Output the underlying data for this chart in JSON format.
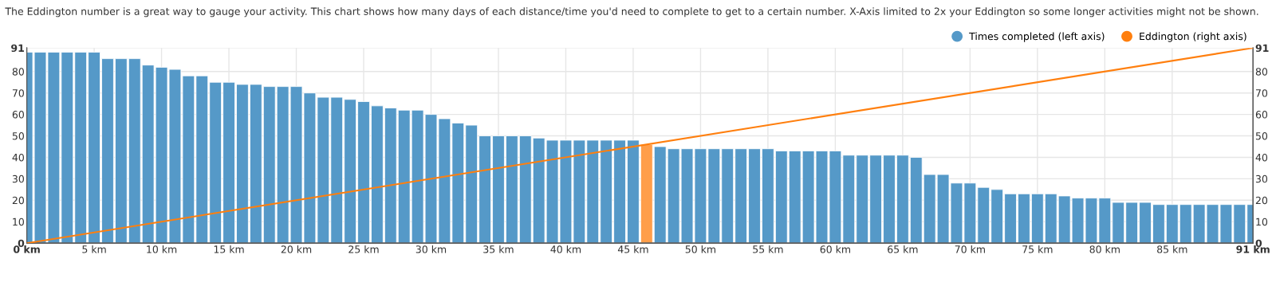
{
  "chart_data": {
    "type": "bar",
    "title": "The Eddington number is a great way to gauge your activity. This chart shows how many days of each distance/time you'd need to complete to get to a certain number. X-Axis limited to 2x your Eddington so some longer activities might not be shown.",
    "x": [
      0,
      1,
      2,
      3,
      4,
      5,
      6,
      7,
      8,
      9,
      10,
      11,
      12,
      13,
      14,
      15,
      16,
      17,
      18,
      19,
      20,
      21,
      22,
      23,
      24,
      25,
      26,
      27,
      28,
      29,
      30,
      31,
      32,
      33,
      34,
      35,
      36,
      37,
      38,
      39,
      40,
      41,
      42,
      43,
      44,
      45,
      46,
      47,
      48,
      49,
      50,
      51,
      52,
      53,
      54,
      55,
      56,
      57,
      58,
      59,
      60,
      61,
      62,
      63,
      64,
      65,
      66,
      67,
      68,
      69,
      70,
      71,
      72,
      73,
      74,
      75,
      76,
      77,
      78,
      79,
      80,
      81,
      82,
      83,
      84,
      85,
      86,
      87,
      88,
      89,
      90,
      91
    ],
    "series": [
      {
        "name": "Times completed (left axis)",
        "color": "#5599c8",
        "values": [
          89,
          89,
          89,
          89,
          89,
          89,
          86,
          86,
          86,
          83,
          82,
          81,
          78,
          78,
          75,
          75,
          74,
          74,
          73,
          73,
          73,
          70,
          68,
          68,
          67,
          66,
          64,
          63,
          62,
          62,
          60,
          58,
          56,
          55,
          50,
          50,
          50,
          50,
          49,
          48,
          48,
          48,
          48,
          48,
          48,
          48,
          46,
          45,
          44,
          44,
          44,
          44,
          44,
          44,
          44,
          44,
          43,
          43,
          43,
          43,
          43,
          41,
          41,
          41,
          41,
          41,
          40,
          32,
          32,
          28,
          28,
          26,
          25,
          23,
          23,
          23,
          23,
          22,
          21,
          21,
          21,
          19,
          19,
          19,
          18,
          18,
          18,
          18,
          18,
          18,
          18,
          18
        ],
        "colors": [
          "#5599c8",
          "#5599c8",
          "#5599c8",
          "#5599c8",
          "#5599c8",
          "#5599c8",
          "#5599c8",
          "#5599c8",
          "#5599c8",
          "#5599c8",
          "#5599c8",
          "#5599c8",
          "#5599c8",
          "#5599c8",
          "#5599c8",
          "#5599c8",
          "#5599c8",
          "#5599c8",
          "#5599c8",
          "#5599c8",
          "#5599c8",
          "#5599c8",
          "#5599c8",
          "#5599c8",
          "#5599c8",
          "#5599c8",
          "#5599c8",
          "#5599c8",
          "#5599c8",
          "#5599c8",
          "#5599c8",
          "#5599c8",
          "#5599c8",
          "#5599c8",
          "#5599c8",
          "#5599c8",
          "#5599c8",
          "#5599c8",
          "#5599c8",
          "#5599c8",
          "#5599c8",
          "#5599c8",
          "#5599c8",
          "#5599c8",
          "#5599c8",
          "#5599c8",
          "#ff9e4a",
          "#5599c8",
          "#5599c8",
          "#5599c8",
          "#5599c8",
          "#5599c8",
          "#5599c8",
          "#5599c8",
          "#5599c8",
          "#5599c8",
          "#5599c8",
          "#5599c8",
          "#5599c8",
          "#5599c8",
          "#5599c8",
          "#5599c8",
          "#5599c8",
          "#5599c8",
          "#5599c8",
          "#5599c8",
          "#5599c8",
          "#5599c8",
          "#5599c8",
          "#5599c8",
          "#5599c8",
          "#5599c8",
          "#5599c8",
          "#5599c8",
          "#5599c8",
          "#5599c8",
          "#5599c8",
          "#5599c8",
          "#5599c8",
          "#5599c8",
          "#5599c8",
          "#5599c8",
          "#5599c8",
          "#5599c8",
          "#5599c8",
          "#5599c8",
          "#5599c8",
          "#5599c8",
          "#5599c8",
          "#5599c8",
          "#5599c8",
          "#5599c8"
        ]
      },
      {
        "name": "Eddington (right axis)",
        "type": "line",
        "axis": "y2",
        "color": "#ff7f0e",
        "x": [
          0,
          91
        ],
        "values": [
          0,
          91
        ]
      }
    ],
    "xlim": [
      0,
      91
    ],
    "xticks": [
      {
        "value": 0,
        "label": "0 km"
      },
      {
        "value": 5,
        "label": "5 km"
      },
      {
        "value": 10,
        "label": "10 km"
      },
      {
        "value": 15,
        "label": "15 km"
      },
      {
        "value": 20,
        "label": "20 km"
      },
      {
        "value": 25,
        "label": "25 km"
      },
      {
        "value": 30,
        "label": "30 km"
      },
      {
        "value": 35,
        "label": "35 km"
      },
      {
        "value": 40,
        "label": "40 km"
      },
      {
        "value": 45,
        "label": "45 km"
      },
      {
        "value": 50,
        "label": "50 km"
      },
      {
        "value": 55,
        "label": "55 km"
      },
      {
        "value": 60,
        "label": "60 km"
      },
      {
        "value": 65,
        "label": "65 km"
      },
      {
        "value": 70,
        "label": "70 km"
      },
      {
        "value": 75,
        "label": "75 km"
      },
      {
        "value": 80,
        "label": "80 km"
      },
      {
        "value": 85,
        "label": "85 km"
      },
      {
        "value": 91,
        "label": "91 km"
      }
    ],
    "ylim": [
      0,
      91
    ],
    "yticks": [
      0,
      10,
      20,
      30,
      40,
      50,
      60,
      70,
      80,
      91
    ],
    "y2lim": [
      0,
      91
    ],
    "y2ticks": [
      0,
      10,
      20,
      30,
      40,
      50,
      60,
      70,
      80,
      91
    ],
    "grid": true,
    "legend": "top right",
    "marker": "none",
    "line_style": "solid"
  }
}
